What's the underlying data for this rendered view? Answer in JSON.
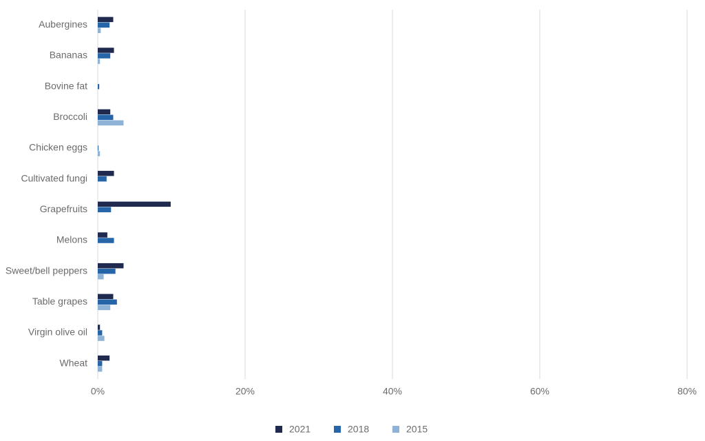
{
  "chart_data": {
    "type": "hbar",
    "categories": [
      "Aubergines",
      "Bananas",
      "Bovine fat",
      "Broccoli",
      "Chicken eggs",
      "Cultivated fungi",
      "Grapefruits",
      "Melons",
      "Sweet/bell peppers",
      "Table grapes",
      "Virgin olive oil",
      "Wheat"
    ],
    "series": [
      {
        "name": "2021",
        "color": "#1f2a4e",
        "values": [
          2.1,
          2.2,
          0,
          1.7,
          0,
          2.2,
          9.9,
          1.3,
          3.5,
          2.1,
          0.3,
          1.6
        ]
      },
      {
        "name": "2018",
        "color": "#2565a8",
        "values": [
          1.6,
          1.7,
          0.2,
          2.1,
          0.1,
          1.2,
          1.8,
          2.2,
          2.4,
          2.6,
          0.6,
          0.6
        ]
      },
      {
        "name": "2015",
        "color": "#8fb3d6",
        "values": [
          0.4,
          0.3,
          0,
          3.5,
          0.3,
          0,
          0,
          0,
          0.8,
          1.7,
          0.9,
          0.6
        ]
      }
    ],
    "xlim": [
      0,
      80
    ],
    "xticks": [
      {
        "value": 0,
        "label": "0%"
      },
      {
        "value": 20,
        "label": "20%"
      },
      {
        "value": 40,
        "label": "40%"
      },
      {
        "value": 60,
        "label": "60%"
      },
      {
        "value": 80,
        "label": "80%"
      }
    ],
    "grid": true,
    "legend": "bottom"
  }
}
